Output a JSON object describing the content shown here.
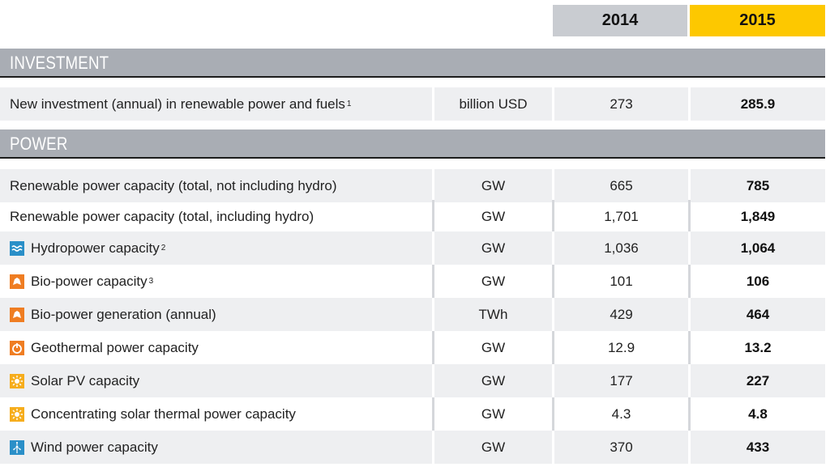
{
  "columns": {
    "y2014": "2014",
    "y2015": "2015"
  },
  "sections": {
    "investment": {
      "title": "INVESTMENT",
      "rows": [
        {
          "label": "New investment (annual) in renewable power and fuels",
          "note": "1",
          "unit": "billion USD",
          "v2014": "273",
          "v2015": "285.9"
        }
      ]
    },
    "power": {
      "title": "POWER",
      "rows": [
        {
          "label": "Renewable power capacity (total, not including hydro)",
          "note": "",
          "unit": "GW",
          "v2014": "665",
          "v2015": "785",
          "icon": ""
        },
        {
          "label": "Renewable power capacity (total, including hydro)",
          "note": "",
          "unit": "GW",
          "v2014": "1,701",
          "v2015": "1,849",
          "icon": ""
        },
        {
          "label": "Hydropower capacity",
          "note": "2",
          "unit": "GW",
          "v2014": "1,036",
          "v2015": "1,064",
          "icon": "hydro-icon"
        },
        {
          "label": "Bio-power capacity",
          "note": "3",
          "unit": "GW",
          "v2014": "101",
          "v2015": "106",
          "icon": "bio-power-icon"
        },
        {
          "label": "Bio-power generation (annual)",
          "note": "",
          "unit": "TWh",
          "v2014": "429",
          "v2015": "464",
          "icon": "bio-power-icon"
        },
        {
          "label": "Geothermal power capacity",
          "note": "",
          "unit": "GW",
          "v2014": "12.9",
          "v2015": "13.2",
          "icon": "geothermal-icon"
        },
        {
          "label": "Solar PV capacity",
          "note": "",
          "unit": "GW",
          "v2014": "177",
          "v2015": "227",
          "icon": "solar-icon"
        },
        {
          "label": "Concentrating solar thermal power capacity",
          "note": "",
          "unit": "GW",
          "v2014": "4.3",
          "v2015": "4.8",
          "icon": "solar-icon"
        },
        {
          "label": "Wind power capacity",
          "note": "",
          "unit": "GW",
          "v2014": "370",
          "v2015": "433",
          "icon": "wind-icon"
        }
      ]
    }
  },
  "colors": {
    "hydro": "#2a8fc8",
    "bio": "#ef7d22",
    "geothermal": "#ef7d22",
    "solar": "#f6ad1c",
    "wind": "#2a8fc8"
  }
}
